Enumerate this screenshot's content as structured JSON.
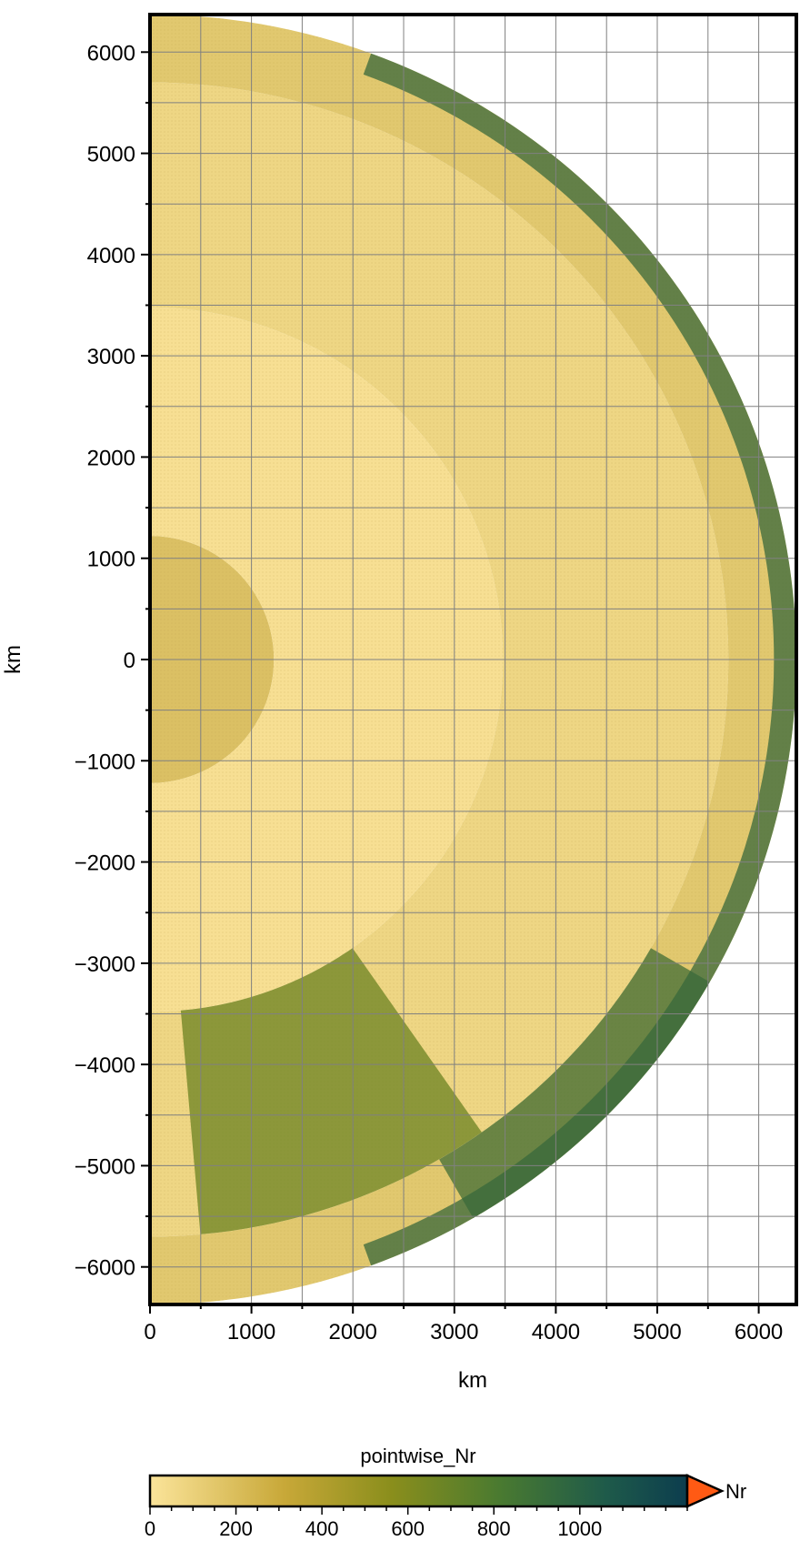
{
  "chart_data": {
    "type": "heatmap",
    "projection": "half-disk cross-section (polar, 0-180 degrees)",
    "xlabel": "km",
    "ylabel": "km",
    "xlim": [
      0,
      6371
    ],
    "ylim": [
      -6371,
      6371
    ],
    "x_ticks": [
      0,
      1000,
      2000,
      3000,
      4000,
      5000,
      6000
    ],
    "y_ticks": [
      6000,
      5000,
      4000,
      3000,
      2000,
      1000,
      0,
      -1000,
      -2000,
      -3000,
      -4000,
      -5000,
      -6000
    ],
    "x_tick_labels": [
      "0",
      "1000",
      "2000",
      "3000",
      "4000",
      "5000",
      "6000"
    ],
    "y_tick_labels": [
      "6000",
      "5000",
      "4000",
      "3000",
      "2000",
      "1000",
      "0",
      "−1000",
      "−2000",
      "−3000",
      "−4000",
      "−5000",
      "−6000"
    ],
    "grid_step_km": 500,
    "grid": true,
    "layers": [
      {
        "r_inner": 0,
        "r_outer": 1221,
        "value": 150
      },
      {
        "r_inner": 1221,
        "r_outer": 3480,
        "value": 20
      },
      {
        "r_inner": 3480,
        "r_outer": 5701,
        "value": 60
      },
      {
        "r_inner": 5701,
        "r_outer": 6371,
        "value": 120
      }
    ],
    "anomalies": [
      {
        "region": "lower mantle, south",
        "r_range": [
          3480,
          5700
        ],
        "theta_deg_from_north": [
          145,
          175
        ],
        "value": 700
      },
      {
        "region": "upper mantle, south-east",
        "r_range": [
          5701,
          6371
        ],
        "theta_deg_from_north": [
          120,
          150
        ],
        "value": 900
      },
      {
        "region": "outer rim",
        "r_range": [
          6150,
          6371
        ],
        "theta_deg_from_north": [
          20,
          160
        ],
        "value": 950
      }
    ],
    "colorbar": {
      "title": "pointwise_Nr",
      "unit_label": "Nr",
      "range": [
        0,
        1250
      ],
      "ticks": [
        0,
        200,
        400,
        600,
        800,
        1000
      ],
      "tick_labels": [
        "0",
        "200",
        "400",
        "600",
        "800",
        "1000"
      ],
      "extension": "max",
      "extension_color": "#ff5a14",
      "colors": [
        "#fbe49a",
        "#b89a2a",
        "#7a8a1a",
        "#3a6a3a",
        "#0c3d4e"
      ]
    }
  }
}
